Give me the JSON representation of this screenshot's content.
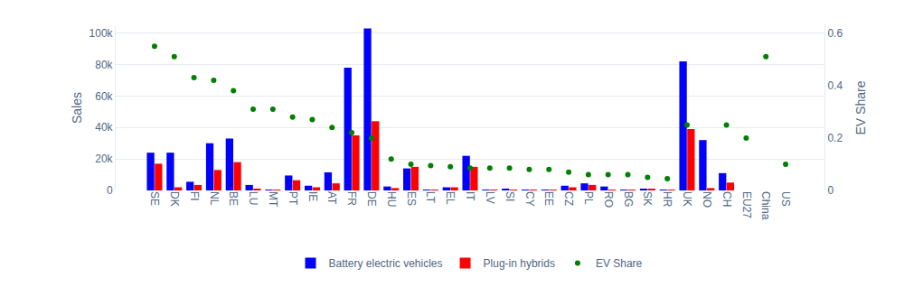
{
  "chart_data": {
    "type": "bar",
    "categories": [
      "SE",
      "DK",
      "FI",
      "NL",
      "BE",
      "LU",
      "MT",
      "PT",
      "IE",
      "AT",
      "FR",
      "DE",
      "HU",
      "ES",
      "LT",
      "EL",
      "IT",
      "LV",
      "SI",
      "CY",
      "EE",
      "CZ",
      "PL",
      "RO",
      "BG",
      "SK",
      "HR",
      "UK",
      "NO",
      "CH",
      "EU27",
      "China",
      "US"
    ],
    "series": [
      {
        "name": "Battery electric vehicles",
        "type": "bar",
        "color": "#0000ff",
        "values": [
          24000,
          24000,
          5500,
          30000,
          33000,
          3500,
          500,
          9500,
          3000,
          11500,
          78000,
          103000,
          2500,
          14000,
          500,
          2000,
          22000,
          300,
          800,
          200,
          300,
          3000,
          4500,
          2500,
          500,
          700,
          500,
          82000,
          32000,
          11000,
          null,
          null,
          null
        ]
      },
      {
        "name": "Plug-in hybrids",
        "type": "bar",
        "color": "#ff0000",
        "values": [
          17000,
          2000,
          3500,
          13000,
          18000,
          1000,
          100,
          6500,
          2000,
          4500,
          35000,
          44000,
          1500,
          15000,
          300,
          2000,
          15000,
          200,
          300,
          200,
          200,
          2000,
          3500,
          500,
          300,
          600,
          300,
          39000,
          1500,
          5000,
          null,
          null,
          null
        ]
      },
      {
        "name": "EV Share",
        "type": "scatter",
        "marker": "circle",
        "color": "#008000",
        "axis": "y2",
        "values": [
          0.55,
          0.51,
          0.43,
          0.42,
          0.38,
          0.31,
          0.31,
          0.28,
          0.27,
          0.24,
          0.22,
          0.2,
          0.12,
          0.1,
          0.095,
          0.09,
          0.085,
          0.085,
          0.085,
          0.08,
          0.08,
          0.07,
          0.06,
          0.06,
          0.06,
          0.05,
          0.045,
          0.25,
          null,
          0.25,
          0.2,
          0.51,
          0.1
        ]
      }
    ],
    "y_label": "Sales",
    "y2_label": "EV Share",
    "ylim": [
      0,
      105000
    ],
    "yticks": [
      0,
      {
        "value": 20000,
        "label": "20k"
      },
      {
        "value": 40000,
        "label": "40k"
      },
      {
        "value": 60000,
        "label": "60k"
      },
      {
        "value": 80000,
        "label": "80k"
      },
      {
        "value": 100000,
        "label": "100k"
      }
    ],
    "y2lim": [
      0,
      0.63
    ],
    "y2ticks": [
      0,
      0.2,
      0.4,
      0.6
    ],
    "grid": true,
    "legend": "bottom"
  }
}
